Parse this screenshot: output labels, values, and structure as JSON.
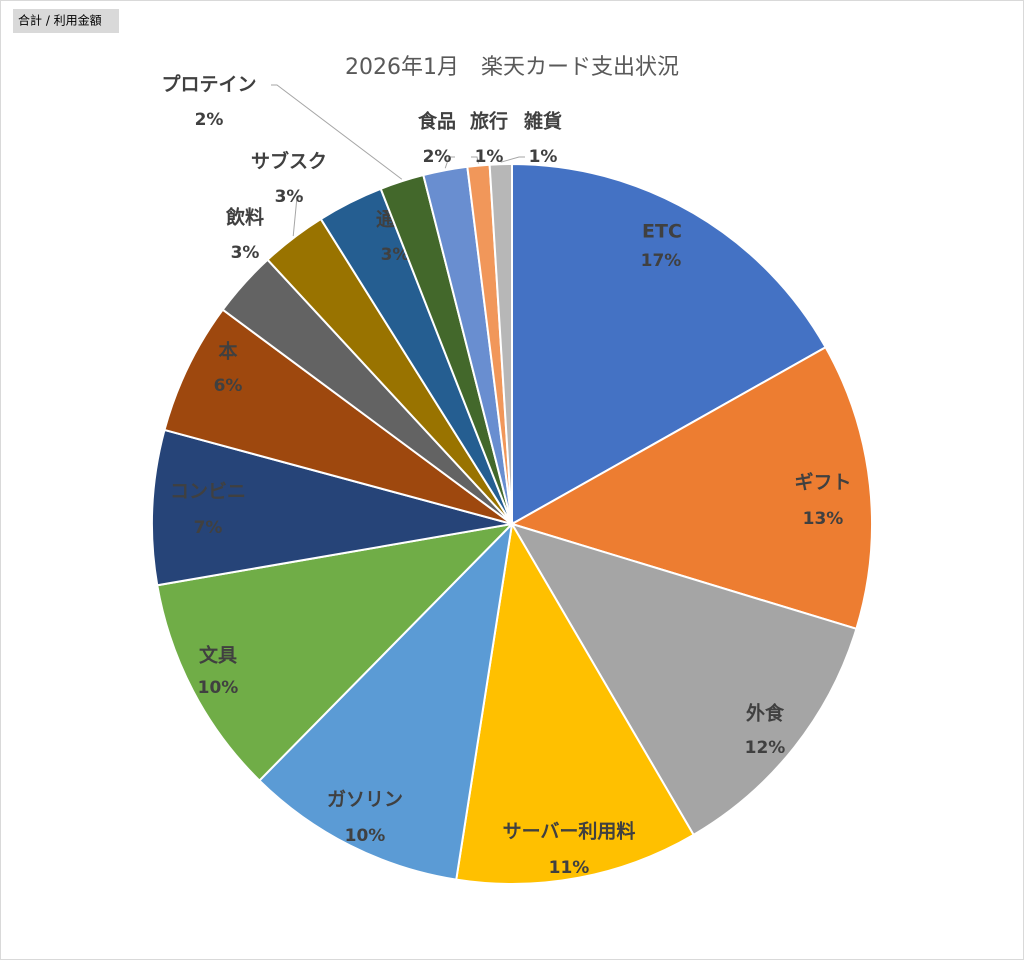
{
  "field_button": "合計 / 利用金額",
  "chart_data": {
    "type": "pie",
    "title": "2026年1月　楽天カード支出状況",
    "categories": [
      "ETC",
      "ギフト",
      "外食",
      "サーバー利用料",
      "ガソリン",
      "文具",
      "コンビニ",
      "本",
      "飲料",
      "サブスク",
      "通信",
      "プロテイン",
      "食品",
      "旅行",
      "雑貨"
    ],
    "values": [
      17,
      13,
      12,
      11,
      10,
      10,
      7,
      6,
      3,
      3,
      3,
      2,
      2,
      1,
      1
    ],
    "value_labels": [
      "17%",
      "13%",
      "12%",
      "11%",
      "10%",
      "10%",
      "7%",
      "6%",
      "3%",
      "3%",
      "3%",
      "2%",
      "2%",
      "1%",
      "1%"
    ],
    "colors": [
      "#4472c4",
      "#ed7d31",
      "#a5a5a5",
      "#ffc000",
      "#5b9bd5",
      "#70ad47",
      "#264478",
      "#9e480e",
      "#636363",
      "#997300",
      "#255e91",
      "#43682b",
      "#698ed0",
      "#f1975a",
      "#b7b7b7"
    ]
  }
}
